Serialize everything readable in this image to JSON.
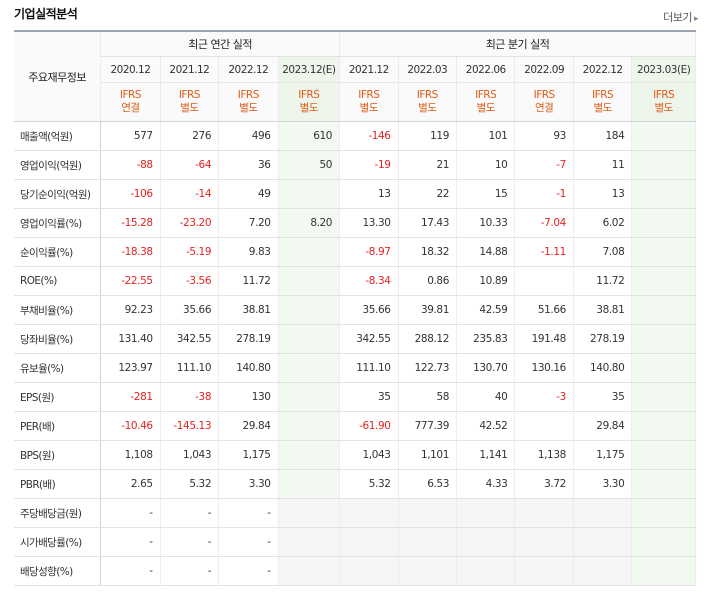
{
  "header": {
    "title": "기업실적분석",
    "more_label": "더보기"
  },
  "table": {
    "corner_label": "주요재무정보",
    "groups": {
      "annual": "최근 연간 실적",
      "quarter": "최근 분기 실적"
    },
    "columns": [
      {
        "period": "2020.12",
        "line1": "IFRS",
        "line2": "연결"
      },
      {
        "period": "2021.12",
        "line1": "IFRS",
        "line2": "별도"
      },
      {
        "period": "2022.12",
        "line1": "IFRS",
        "line2": "별도"
      },
      {
        "period": "2023.12(E)",
        "line1": "IFRS",
        "line2": "별도"
      },
      {
        "period": "2021.12",
        "line1": "IFRS",
        "line2": "별도"
      },
      {
        "period": "2022.03",
        "line1": "IFRS",
        "line2": "별도"
      },
      {
        "period": "2022.06",
        "line1": "IFRS",
        "line2": "별도"
      },
      {
        "period": "2022.09",
        "line1": "IFRS",
        "line2": "연결"
      },
      {
        "period": "2022.12",
        "line1": "IFRS",
        "line2": "별도"
      },
      {
        "period": "2023.03(E)",
        "line1": "IFRS",
        "line2": "별도"
      }
    ],
    "rows": [
      {
        "label": "매출액(억원)",
        "values": [
          "577",
          "276",
          "496",
          "610",
          "-146",
          "119",
          "101",
          "93",
          "184",
          ""
        ]
      },
      {
        "label": "영업이익(억원)",
        "values": [
          "-88",
          "-64",
          "36",
          "50",
          "-19",
          "21",
          "10",
          "-7",
          "11",
          ""
        ]
      },
      {
        "label": "당기순이익(억원)",
        "values": [
          "-106",
          "-14",
          "49",
          "",
          "13",
          "22",
          "15",
          "-1",
          "13",
          ""
        ]
      },
      {
        "label": "영업이익률(%)",
        "values": [
          "-15.28",
          "-23.20",
          "7.20",
          "8.20",
          "13.30",
          "17.43",
          "10.33",
          "-7.04",
          "6.02",
          ""
        ]
      },
      {
        "label": "순이익률(%)",
        "values": [
          "-18.38",
          "-5.19",
          "9.83",
          "",
          "-8.97",
          "18.32",
          "14.88",
          "-1.11",
          "7.08",
          ""
        ]
      },
      {
        "label": "ROE(%)",
        "values": [
          "-22.55",
          "-3.56",
          "11.72",
          "",
          "-8.34",
          "0.86",
          "10.89",
          "",
          "11.72",
          ""
        ]
      },
      {
        "label": "부채비율(%)",
        "values": [
          "92.23",
          "35.66",
          "38.81",
          "",
          "35.66",
          "39.81",
          "42.59",
          "51.66",
          "38.81",
          ""
        ]
      },
      {
        "label": "당좌비율(%)",
        "values": [
          "131.40",
          "342.55",
          "278.19",
          "",
          "342.55",
          "288.12",
          "235.83",
          "191.48",
          "278.19",
          ""
        ]
      },
      {
        "label": "유보율(%)",
        "values": [
          "123.97",
          "111.10",
          "140.80",
          "",
          "111.10",
          "122.73",
          "130.70",
          "130.16",
          "140.80",
          ""
        ]
      },
      {
        "label": "EPS(원)",
        "values": [
          "-281",
          "-38",
          "130",
          "",
          "35",
          "58",
          "40",
          "-3",
          "35",
          ""
        ]
      },
      {
        "label": "PER(배)",
        "values": [
          "-10.46",
          "-145.13",
          "29.84",
          "",
          "-61.90",
          "777.39",
          "42.52",
          "",
          "29.84",
          ""
        ]
      },
      {
        "label": "BPS(원)",
        "values": [
          "1,108",
          "1,043",
          "1,175",
          "",
          "1,043",
          "1,101",
          "1,141",
          "1,138",
          "1,175",
          ""
        ]
      },
      {
        "label": "PBR(배)",
        "values": [
          "2.65",
          "5.32",
          "3.30",
          "",
          "5.32",
          "6.53",
          "4.33",
          "3.72",
          "3.30",
          ""
        ]
      },
      {
        "label": "주당배당금(원)",
        "values": [
          "-",
          "-",
          "-",
          "",
          "",
          "",
          "",
          "",
          "",
          ""
        ]
      },
      {
        "label": "시가배당률(%)",
        "values": [
          "-",
          "-",
          "-",
          "",
          "",
          "",
          "",
          "",
          "",
          ""
        ]
      },
      {
        "label": "배당성향(%)",
        "values": [
          "-",
          "-",
          "-",
          "",
          "",
          "",
          "",
          "",
          "",
          ""
        ]
      }
    ]
  },
  "colors": {
    "negative": "#e52222",
    "ifrs": "#e05a14",
    "estimate_bg": "#f2f9f0"
  }
}
